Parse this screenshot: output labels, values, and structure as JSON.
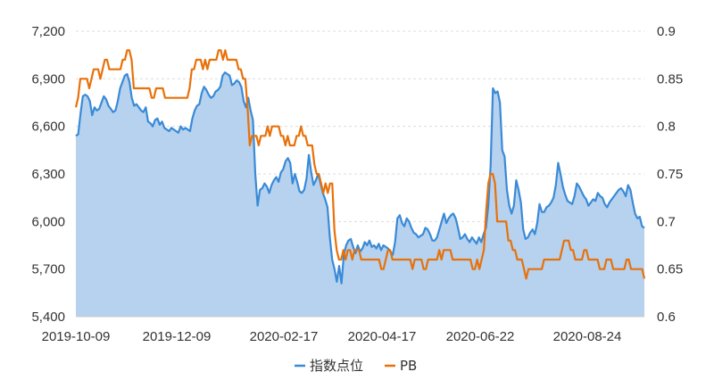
{
  "chart_data": {
    "type": "line",
    "title": "",
    "xlabel": "",
    "ylabel": "",
    "x_tick_labels": [
      "2019-10-09",
      "2019-12-09",
      "2020-02-17",
      "2020-04-17",
      "2020-06-22",
      "2020-08-24"
    ],
    "y_left": {
      "ticks": [
        "5,400",
        "5,700",
        "6,000",
        "6,300",
        "6,600",
        "6,900",
        "7,200"
      ],
      "range": [
        5400,
        7200
      ]
    },
    "y_right": {
      "ticks": [
        "0.6",
        "0.65",
        "0.7",
        "0.75",
        "0.8",
        "0.85",
        "0.9"
      ],
      "range": [
        0.6,
        0.9
      ]
    },
    "grid": true,
    "legend_position": "bottom-center",
    "series": [
      {
        "name": "指数点位",
        "axis": "left",
        "style": "area",
        "color": "#3a8ad6",
        "fill": "#b6d2ef",
        "values": [
          6540,
          6550,
          6680,
          6790,
          6800,
          6790,
          6760,
          6670,
          6720,
          6700,
          6710,
          6750,
          6790,
          6770,
          6730,
          6710,
          6690,
          6700,
          6760,
          6840,
          6880,
          6920,
          6930,
          6880,
          6780,
          6730,
          6740,
          6720,
          6700,
          6690,
          6720,
          6630,
          6620,
          6600,
          6640,
          6650,
          6610,
          6630,
          6590,
          6580,
          6570,
          6590,
          6580,
          6570,
          6560,
          6600,
          6580,
          6590,
          6580,
          6570,
          6650,
          6700,
          6730,
          6740,
          6810,
          6850,
          6830,
          6800,
          6780,
          6790,
          6820,
          6830,
          6850,
          6920,
          6940,
          6930,
          6920,
          6860,
          6870,
          6890,
          6880,
          6850,
          6760,
          6720,
          6780,
          6700,
          6640,
          6300,
          6100,
          6200,
          6210,
          6240,
          6220,
          6180,
          6230,
          6260,
          6280,
          6250,
          6310,
          6330,
          6380,
          6400,
          6370,
          6240,
          6300,
          6250,
          6190,
          6180,
          6200,
          6270,
          6420,
          6310,
          6230,
          6260,
          6300,
          6240,
          6180,
          6140,
          6090,
          5900,
          5760,
          5700,
          5620,
          5720,
          5610,
          5790,
          5850,
          5880,
          5890,
          5840,
          5800,
          5850,
          5810,
          5830,
          5870,
          5850,
          5880,
          5840,
          5850,
          5830,
          5860,
          5820,
          5850,
          5840,
          5830,
          5810,
          5790,
          5870,
          6020,
          6040,
          5990,
          5970,
          6020,
          6000,
          5960,
          5930,
          5920,
          5900,
          5910,
          5920,
          5960,
          5950,
          5920,
          5880,
          5880,
          5900,
          5950,
          6000,
          6050,
          5990,
          6020,
          6040,
          6050,
          6020,
          5960,
          5890,
          5900,
          5920,
          5890,
          5870,
          5900,
          5880,
          5860,
          5900,
          5870,
          5920,
          5960,
          6100,
          6350,
          6840,
          6810,
          6820,
          6750,
          6450,
          6410,
          6200,
          6100,
          6050,
          6100,
          6260,
          6200,
          6120,
          5950,
          5890,
          5900,
          5930,
          5950,
          5920,
          5990,
          6110,
          6060,
          6060,
          6090,
          6100,
          6120,
          6150,
          6230,
          6370,
          6300,
          6220,
          6170,
          6130,
          6120,
          6110,
          6160,
          6240,
          6220,
          6190,
          6160,
          6140,
          6100,
          6120,
          6140,
          6130,
          6180,
          6160,
          6150,
          6110,
          6090,
          6120,
          6140,
          6160,
          6180,
          6200,
          6210,
          6190,
          6160,
          6230,
          6200,
          6120,
          6050,
          6020,
          6030,
          5970,
          5960
        ]
      },
      {
        "name": "PB",
        "axis": "right",
        "style": "line",
        "color": "#e8710a",
        "values": [
          0.82,
          0.83,
          0.85,
          0.85,
          0.85,
          0.85,
          0.84,
          0.85,
          0.86,
          0.86,
          0.86,
          0.85,
          0.86,
          0.87,
          0.87,
          0.86,
          0.86,
          0.86,
          0.86,
          0.86,
          0.86,
          0.87,
          0.87,
          0.88,
          0.88,
          0.87,
          0.84,
          0.84,
          0.84,
          0.84,
          0.84,
          0.84,
          0.84,
          0.84,
          0.83,
          0.83,
          0.84,
          0.84,
          0.84,
          0.84,
          0.83,
          0.83,
          0.83,
          0.83,
          0.83,
          0.83,
          0.83,
          0.83,
          0.83,
          0.83,
          0.83,
          0.84,
          0.86,
          0.86,
          0.87,
          0.87,
          0.87,
          0.86,
          0.87,
          0.86,
          0.87,
          0.87,
          0.87,
          0.87,
          0.88,
          0.88,
          0.87,
          0.88,
          0.87,
          0.87,
          0.87,
          0.87,
          0.87,
          0.86,
          0.86,
          0.85,
          0.85,
          0.82,
          0.78,
          0.79,
          0.79,
          0.79,
          0.78,
          0.79,
          0.79,
          0.79,
          0.8,
          0.79,
          0.8,
          0.8,
          0.8,
          0.8,
          0.79,
          0.79,
          0.78,
          0.79,
          0.78,
          0.78,
          0.78,
          0.79,
          0.79,
          0.8,
          0.79,
          0.79,
          0.78,
          0.78,
          0.78,
          0.76,
          0.75,
          0.75,
          0.74,
          0.73,
          0.74,
          0.73,
          0.74,
          0.74,
          0.69,
          0.67,
          0.66,
          0.66,
          0.67,
          0.66,
          0.67,
          0.67,
          0.66,
          0.67,
          0.67,
          0.67,
          0.66,
          0.66,
          0.66,
          0.66,
          0.66,
          0.66,
          0.66,
          0.66,
          0.66,
          0.65,
          0.65,
          0.66,
          0.67,
          0.67,
          0.66,
          0.66,
          0.66,
          0.66,
          0.66,
          0.66,
          0.66,
          0.66,
          0.66,
          0.65,
          0.66,
          0.66,
          0.66,
          0.66,
          0.65,
          0.65,
          0.66,
          0.66,
          0.66,
          0.66,
          0.66,
          0.67,
          0.66,
          0.67,
          0.67,
          0.67,
          0.67,
          0.66,
          0.66,
          0.66,
          0.66,
          0.66,
          0.66,
          0.66,
          0.66,
          0.66,
          0.65,
          0.65,
          0.66,
          0.65,
          0.66,
          0.67,
          0.71,
          0.74,
          0.75,
          0.75,
          0.74,
          0.7,
          0.7,
          0.7,
          0.7,
          0.7,
          0.68,
          0.68,
          0.67,
          0.67,
          0.66,
          0.66,
          0.66,
          0.65,
          0.64,
          0.65,
          0.65,
          0.65,
          0.65,
          0.65,
          0.65,
          0.65,
          0.66,
          0.66,
          0.66,
          0.66,
          0.66,
          0.66,
          0.66,
          0.66,
          0.67,
          0.68,
          0.68,
          0.68,
          0.67,
          0.67,
          0.66,
          0.66,
          0.66,
          0.66,
          0.67,
          0.67,
          0.66,
          0.66,
          0.66,
          0.66,
          0.66,
          0.65,
          0.65,
          0.65,
          0.66,
          0.66,
          0.66,
          0.65,
          0.65,
          0.65,
          0.65,
          0.65,
          0.65,
          0.66,
          0.66,
          0.65,
          0.65,
          0.65,
          0.65,
          0.65,
          0.65,
          0.64
        ]
      }
    ]
  }
}
